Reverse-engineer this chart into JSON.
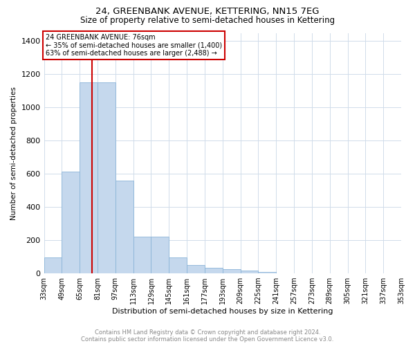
{
  "title": "24, GREENBANK AVENUE, KETTERING, NN15 7EG",
  "subtitle": "Size of property relative to semi-detached houses in Kettering",
  "xlabel": "Distribution of semi-detached houses by size in Kettering",
  "ylabel": "Number of semi-detached properties",
  "annotation_line1": "24 GREENBANK AVENUE: 76sqm",
  "annotation_line2": "← 35% of semi-detached houses are smaller (1,400)",
  "annotation_line3": "63% of semi-detached houses are larger (2,488) →",
  "footer_line1": "Contains HM Land Registry data © Crown copyright and database right 2024.",
  "footer_line2": "Contains public sector information licensed under the Open Government Licence v3.0.",
  "property_size": 76,
  "bar_color": "#c5d8ed",
  "bar_edge_color": "#8ab4d8",
  "red_line_color": "#cc0000",
  "annotation_box_color": "#cc0000",
  "grid_color": "#d0dcea",
  "bin_edges": [
    33,
    49,
    65,
    81,
    97,
    113,
    129,
    145,
    161,
    177,
    193,
    209,
    225,
    241,
    257,
    273,
    289,
    305,
    321,
    337,
    353
  ],
  "bin_labels": [
    "33sqm",
    "49sqm",
    "65sqm",
    "81sqm",
    "97sqm",
    "113sqm",
    "129sqm",
    "145sqm",
    "161sqm",
    "177sqm",
    "193sqm",
    "209sqm",
    "225sqm",
    "241sqm",
    "257sqm",
    "273sqm",
    "289sqm",
    "305sqm",
    "321sqm",
    "337sqm",
    "353sqm"
  ],
  "counts": [
    95,
    615,
    1150,
    1150,
    560,
    220,
    220,
    95,
    50,
    35,
    25,
    15,
    10,
    0,
    0,
    0,
    0,
    0,
    0,
    0
  ],
  "ylim": [
    0,
    1450
  ],
  "yticks": [
    0,
    200,
    400,
    600,
    800,
    1000,
    1200,
    1400
  ],
  "background_color": "#ffffff",
  "title_fontsize": 9.5,
  "subtitle_fontsize": 8.5
}
